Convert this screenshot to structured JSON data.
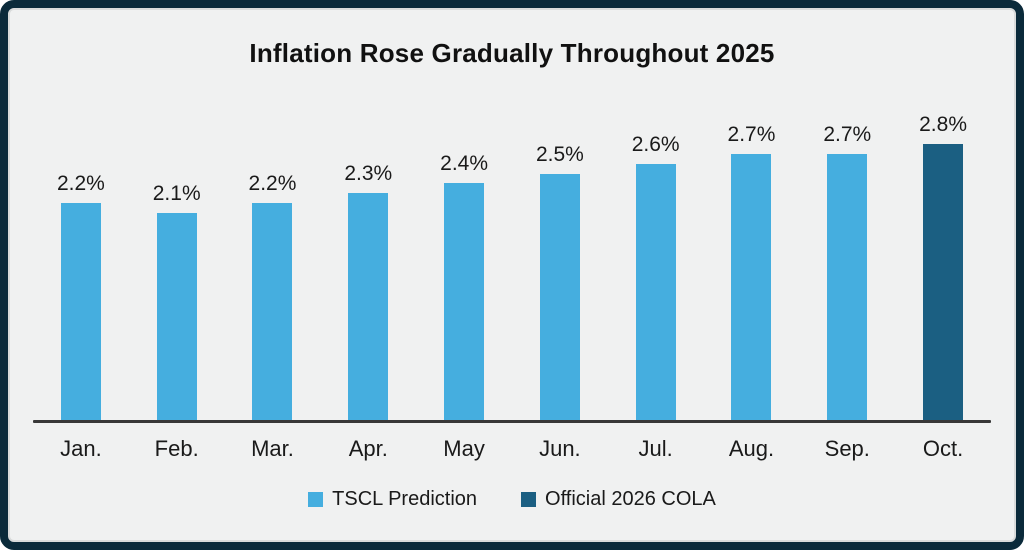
{
  "chart_data": {
    "type": "bar",
    "title": "Inflation Rose Gradually Throughout 2025",
    "categories": [
      "Jan.",
      "Feb.",
      "Mar.",
      "Apr.",
      "May",
      "Jun.",
      "Jul.",
      "Aug.",
      "Sep.",
      "Oct."
    ],
    "values": [
      2.2,
      2.1,
      2.2,
      2.3,
      2.4,
      2.5,
      2.6,
      2.7,
      2.7,
      2.8
    ],
    "value_labels": [
      "2.2%",
      "2.1%",
      "2.2%",
      "2.3%",
      "2.4%",
      "2.5%",
      "2.6%",
      "2.7%",
      "2.7%",
      "2.8%"
    ],
    "bar_series": [
      "TSCL Prediction",
      "TSCL Prediction",
      "TSCL Prediction",
      "TSCL Prediction",
      "TSCL Prediction",
      "TSCL Prediction",
      "TSCL Prediction",
      "TSCL Prediction",
      "TSCL Prediction",
      "Official 2026 COLA"
    ],
    "series": [
      {
        "name": "TSCL Prediction",
        "color": "#45AEDF",
        "values": [
          2.2,
          2.1,
          2.2,
          2.3,
          2.4,
          2.5,
          2.6,
          2.7,
          2.7,
          null
        ]
      },
      {
        "name": "Official 2026 COLA",
        "color": "#1B5F82",
        "values": [
          null,
          null,
          null,
          null,
          null,
          null,
          null,
          null,
          null,
          2.8
        ]
      }
    ],
    "legend": [
      {
        "label": "TSCL Prediction",
        "color": "#45AEDF"
      },
      {
        "label": "Official 2026 COLA",
        "color": "#1B5F82"
      }
    ],
    "legend_position": "bottom",
    "xlabel": "",
    "ylabel": "",
    "ylim": [
      0,
      2.8
    ],
    "grid": false,
    "data_labels_shown": true,
    "y_axis_shown": false
  },
  "colors": {
    "background": "#F0F1F1",
    "frame_border": "#0A2A3A",
    "axis_line": "#383838",
    "text": "#1A1A1A"
  }
}
